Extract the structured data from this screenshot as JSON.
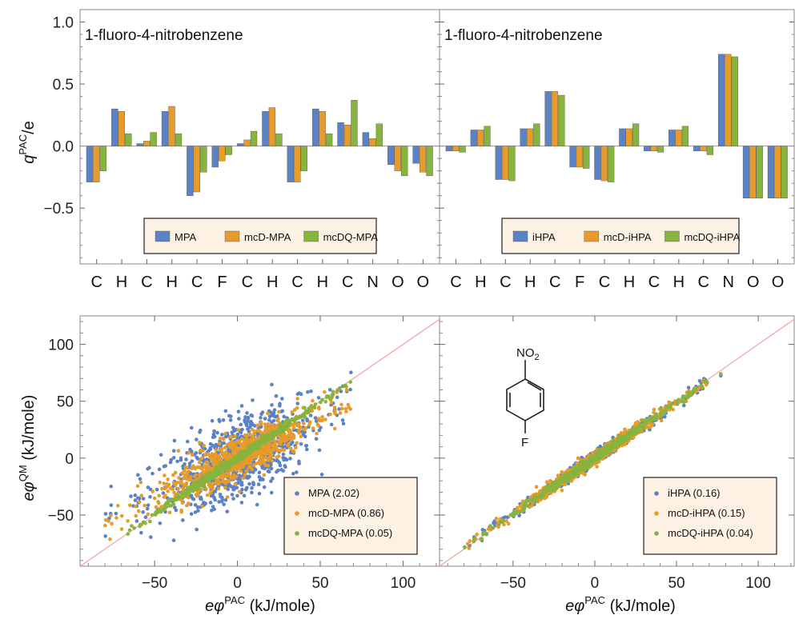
{
  "colors": {
    "series1": "#5b82c4",
    "series2": "#e69b2a",
    "series3": "#86b43c",
    "legend_bg": "#fdf1e4",
    "diagonal": "#f0a0a0"
  },
  "molecule": {
    "top_group": "NO",
    "top_sub": "2",
    "bottom_atom": "F"
  },
  "chart_data": [
    {
      "type": "bar",
      "panel": "top-left",
      "title": "1-fluoro-4-nitrobenzene",
      "ylabel_main": "q",
      "ylabel_sup": "PAC",
      "ylabel_rest": "/e",
      "ylim": [
        -0.95,
        1.1
      ],
      "yticks": [
        "1.0",
        "0.5",
        "0.0",
        "-0.5"
      ],
      "yticks_values": [
        1.0,
        0.5,
        0.0,
        -0.5
      ],
      "categories": [
        "C",
        "H",
        "C",
        "H",
        "C",
        "F",
        "C",
        "H",
        "C",
        "H",
        "C",
        "N",
        "O",
        "O"
      ],
      "legend_position": "lower-center",
      "series": [
        {
          "name": "MPA",
          "values": [
            -0.29,
            0.3,
            0.02,
            0.28,
            -0.4,
            -0.17,
            0.02,
            0.28,
            -0.29,
            0.3,
            0.19,
            0.11,
            -0.15,
            -0.14
          ]
        },
        {
          "name": "mcD-MPA",
          "values": [
            -0.29,
            0.28,
            0.04,
            0.32,
            -0.37,
            -0.12,
            0.05,
            0.31,
            -0.29,
            0.28,
            0.17,
            0.06,
            -0.2,
            -0.21
          ]
        },
        {
          "name": "mcDQ-MPA",
          "values": [
            -0.2,
            0.1,
            0.11,
            0.1,
            -0.21,
            -0.07,
            0.12,
            0.1,
            -0.2,
            0.1,
            0.37,
            0.18,
            -0.24,
            -0.24
          ]
        }
      ]
    },
    {
      "type": "bar",
      "panel": "top-right",
      "title": "1-fluoro-4-nitrobenzene",
      "ylim": [
        -0.95,
        1.1
      ],
      "categories": [
        "C",
        "H",
        "C",
        "H",
        "C",
        "F",
        "C",
        "H",
        "C",
        "H",
        "C",
        "N",
        "O",
        "O"
      ],
      "legend_position": "lower-center",
      "series": [
        {
          "name": "iHPA",
          "values": [
            -0.04,
            0.13,
            -0.27,
            0.14,
            0.44,
            -0.17,
            -0.27,
            0.14,
            -0.04,
            0.13,
            -0.04,
            0.74,
            -0.42,
            -0.42
          ]
        },
        {
          "name": "mcD-iHPA",
          "values": [
            -0.04,
            0.13,
            -0.27,
            0.14,
            0.44,
            -0.17,
            -0.28,
            0.14,
            -0.04,
            0.13,
            -0.04,
            0.74,
            -0.42,
            -0.42
          ]
        },
        {
          "name": "mcDQ-iHPA",
          "values": [
            -0.05,
            0.16,
            -0.28,
            0.18,
            0.41,
            -0.18,
            -0.29,
            0.18,
            -0.05,
            0.16,
            -0.07,
            0.72,
            -0.42,
            -0.42
          ]
        }
      ]
    },
    {
      "type": "scatter",
      "panel": "bottom-left",
      "xlabel_main": "eφ",
      "xlabel_sup": "PAC",
      "xlabel_rest": " (kJ/mole)",
      "ylabel_main": "eφ",
      "ylabel_sup": "QM",
      "ylabel_rest": " (kJ/mole)",
      "xlim": [
        -95,
        122
      ],
      "ylim": [
        -95,
        125
      ],
      "xticks": [
        "-50",
        "0",
        "50",
        "100"
      ],
      "xticks_values": [
        -50,
        0,
        50,
        100
      ],
      "yticks": [
        "100",
        "50",
        "0",
        "-50"
      ],
      "yticks_values": [
        100,
        50,
        0,
        -50
      ],
      "diagonal": true,
      "legend_position": "lower-right",
      "series": [
        {
          "name": "MPA (2.02)",
          "spread": 2.02
        },
        {
          "name": "mcD-MPA (0.86)",
          "spread": 0.86
        },
        {
          "name": "mcDQ-MPA (0.05)",
          "spread": 0.05
        }
      ]
    },
    {
      "type": "scatter",
      "panel": "bottom-right",
      "xlabel_main": "eφ",
      "xlabel_sup": "PAC",
      "xlabel_rest": " (kJ/mole)",
      "xlim": [
        -95,
        122
      ],
      "ylim": [
        -95,
        125
      ],
      "xticks": [
        "-50",
        "0",
        "50",
        "100"
      ],
      "xticks_values": [
        -50,
        0,
        50,
        100
      ],
      "diagonal": true,
      "legend_position": "lower-right",
      "series": [
        {
          "name": "iHPA (0.16)",
          "spread": 0.16
        },
        {
          "name": "mcD-iHPA (0.15)",
          "spread": 0.15
        },
        {
          "name": "mcDQ-iHPA (0.04)",
          "spread": 0.04
        }
      ]
    }
  ]
}
